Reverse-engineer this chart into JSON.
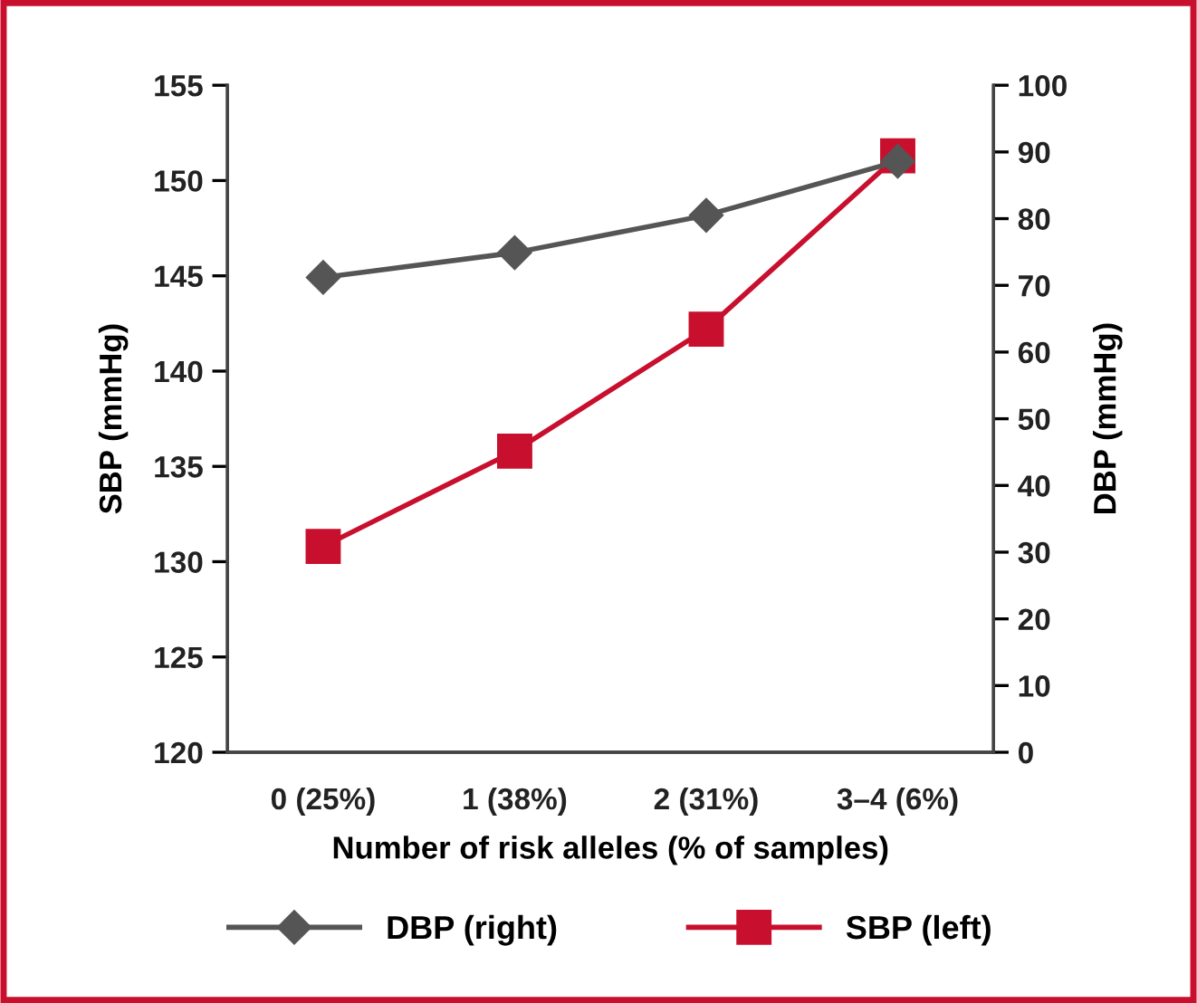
{
  "chart_data": {
    "type": "line",
    "xlabel": "Number of risk alleles (% of samples)",
    "ylabel": "SBP (mmHg)",
    "y2label": "DBP (mmHg)",
    "categories": [
      "0 (25%)",
      "1 (38%)",
      "2 (31%)",
      "3–4 (6%)"
    ],
    "series": [
      {
        "name": "DBP (right)",
        "color": "#555555",
        "axis": "y2",
        "marker": "diamond",
        "values": [
          71.2,
          74.9,
          80.5,
          88.6
        ]
      },
      {
        "name": "SBP (left)",
        "color": "#c8102e",
        "marker": "square",
        "values": [
          130.8,
          135.8,
          142.2,
          151.3
        ]
      }
    ],
    "ylim": [
      120,
      155
    ],
    "yticks": [
      120,
      125,
      130,
      135,
      140,
      145,
      150,
      155
    ],
    "y2lim": [
      0,
      100
    ],
    "y2ticks": [
      0,
      10,
      20,
      30,
      40,
      50,
      60,
      70,
      80,
      90,
      100
    ],
    "legend": "bottom",
    "grid": false
  }
}
